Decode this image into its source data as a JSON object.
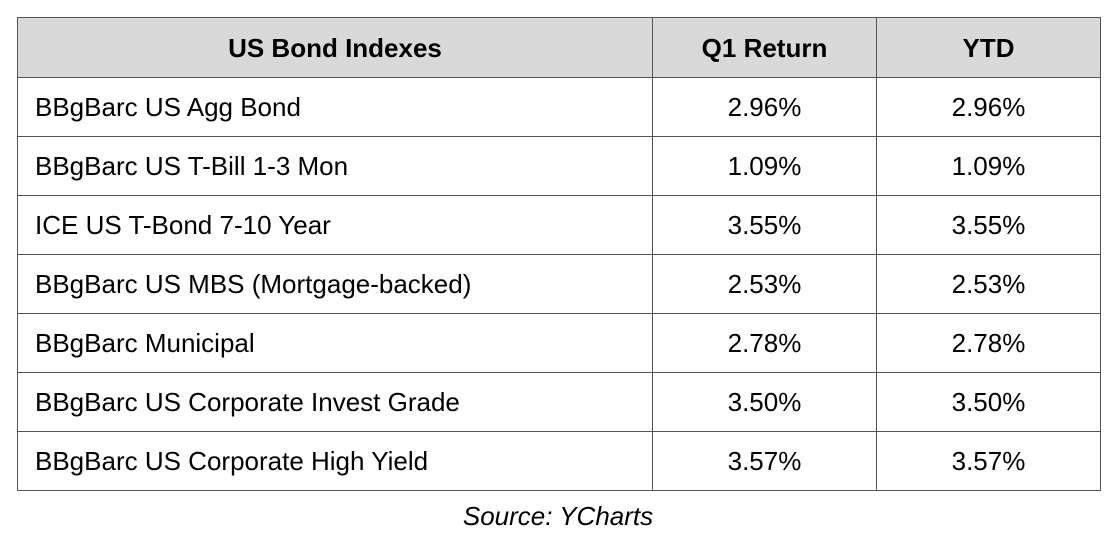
{
  "table": {
    "headers": [
      "US Bond Indexes",
      "Q1 Return",
      "YTD"
    ],
    "rows": [
      {
        "name": "BBgBarc US Agg Bond",
        "q1": "2.96%",
        "ytd": "2.96%"
      },
      {
        "name": "BBgBarc US T-Bill 1-3 Mon",
        "q1": "1.09%",
        "ytd": "1.09%"
      },
      {
        "name": "ICE US T-Bond 7-10 Year",
        "q1": "3.55%",
        "ytd": "3.55%"
      },
      {
        "name": "BBgBarc US MBS (Mortgage-backed)",
        "q1": "2.53%",
        "ytd": "2.53%"
      },
      {
        "name": "BBgBarc Municipal",
        "q1": "2.78%",
        "ytd": "2.78%"
      },
      {
        "name": "BBgBarc US Corporate Invest Grade",
        "q1": "3.50%",
        "ytd": "3.50%"
      },
      {
        "name": "BBgBarc US Corporate High Yield",
        "q1": "3.57%",
        "ytd": "3.57%"
      }
    ]
  },
  "source": "Source: YCharts"
}
